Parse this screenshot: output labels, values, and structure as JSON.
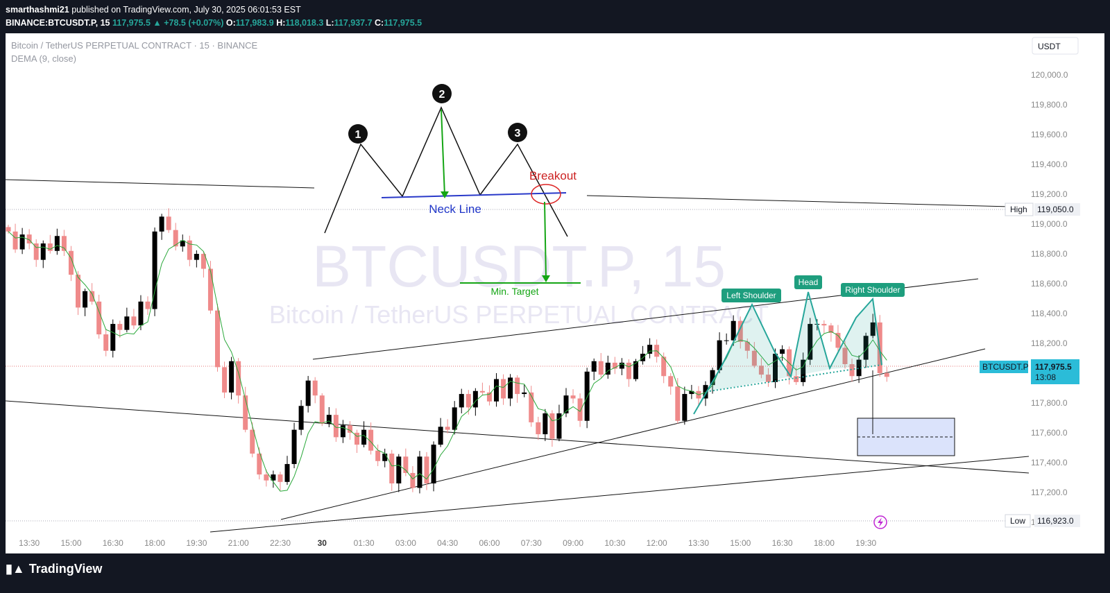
{
  "header": {
    "user": "smarthashmi21",
    "published": "published on TradingView.com, July 30, 2025 06:01:53 EST",
    "symbol_interval": "BINANCE:BTCUSDT.P, 15",
    "last": "117,975.5",
    "change": "▲ +78.5 (+0.07%)",
    "o_label": "O:",
    "o": "117,983.9",
    "h_label": "H:",
    "h": "118,018.3",
    "l_label": "L:",
    "l": "117,937.7",
    "c_label": "C:",
    "c": "117,975.5"
  },
  "legend": {
    "title": "Bitcoin / TetherUS PERPETUAL CONTRACT · 15 · BINANCE",
    "indicator": "DEMA (9, close)"
  },
  "watermark": {
    "line1": "BTCUSDT.P, 15",
    "line2": "Bitcoin / TetherUS PERPETUAL CONTRACT"
  },
  "currency_button": "USDT",
  "markers": {
    "high_label": "High",
    "high_value": "119,050.0",
    "low_label": "Low",
    "low_value": "116,923.0",
    "last_symbol": "BTCUSDT.P",
    "last_price": "117,975.5",
    "countdown": "13:08"
  },
  "annotations": {
    "p1": "1",
    "p2": "2",
    "p3": "3",
    "breakout": "Breakout",
    "neckline": "Neck Line",
    "min_target": "Min. Target",
    "left_shoulder": "Left Shoulder",
    "head": "Head",
    "right_shoulder": "Right Shoulder"
  },
  "branding": {
    "logo_text": "TradingView"
  },
  "chart_data": {
    "type": "candlestick",
    "title": "Bitcoin / TetherUS PERPETUAL CONTRACT · 15 · BINANCE",
    "y_ticks": [
      117000,
      117200,
      117400,
      117600,
      117800,
      118000,
      118200,
      118400,
      118600,
      118800,
      119000,
      119200,
      119400,
      119600,
      119800,
      120000
    ],
    "y_tick_labels": [
      "117,000.0",
      "117,200.0",
      "117,400.0",
      "117,600.0",
      "117,800.0",
      "118,000.0",
      "118,200.0",
      "118,400.0",
      "118,600.0",
      "118,800.0",
      "119,000.0",
      "119,200.0",
      "119,400.0",
      "119,600.0",
      "119,800.0",
      "120,000.0"
    ],
    "ylim": [
      116790,
      120280
    ],
    "x_labels": [
      "13:30",
      "15:00",
      "16:30",
      "18:00",
      "19:30",
      "21:00",
      "22:30",
      "30",
      "01:30",
      "03:00",
      "04:30",
      "06:00",
      "07:30",
      "09:00",
      "10:30",
      "12:00",
      "13:30",
      "15:00",
      "16:30",
      "18:00",
      "19:30"
    ],
    "x_label_index": [
      3,
      9,
      15,
      21,
      27,
      33,
      39,
      45,
      51,
      57,
      63,
      69,
      75,
      81,
      87,
      93,
      99,
      105,
      111,
      117,
      123
    ],
    "high": 119050.0,
    "low": 116923.0,
    "last": 117975.5,
    "colors": {
      "up": "#000000",
      "down": "#ef8a8a",
      "dema": "#2aa83a",
      "pattern": "#26a69a"
    },
    "close": [
      118950,
      118830,
      118930,
      118870,
      118760,
      118870,
      118820,
      118920,
      118820,
      118660,
      118440,
      118550,
      118480,
      118260,
      118150,
      118330,
      118290,
      118380,
      118320,
      118480,
      118430,
      118950,
      119050,
      118960,
      118850,
      118890,
      118760,
      118800,
      118700,
      118420,
      118040,
      117870,
      118080,
      117850,
      117620,
      117460,
      117320,
      117280,
      117320,
      117270,
      117390,
      117620,
      117780,
      117950,
      117850,
      117660,
      117720,
      117570,
      117650,
      117600,
      117520,
      117620,
      117480,
      117410,
      117460,
      117260,
      117440,
      117330,
      117230,
      117440,
      117260,
      117520,
      117640,
      117620,
      117770,
      117860,
      117770,
      117880,
      117870,
      117810,
      117960,
      117830,
      117970,
      117860,
      117870,
      117670,
      117590,
      117730,
      117560,
      117730,
      117850,
      117830,
      117680,
      118010,
      118080,
      117990,
      118070,
      118030,
      118070,
      117960,
      118080,
      118130,
      118190,
      118110,
      117980,
      117910,
      117680,
      117860,
      117880,
      117830,
      117920,
      118020,
      118220,
      118220,
      118350,
      118210,
      118150,
      118050,
      117990,
      117940,
      118130,
      118160,
      117980,
      117940,
      118090,
      118330,
      118330,
      118320,
      118270,
      118170,
      118060,
      117980,
      118090,
      118250,
      118340,
      118000,
      117975
    ]
  }
}
